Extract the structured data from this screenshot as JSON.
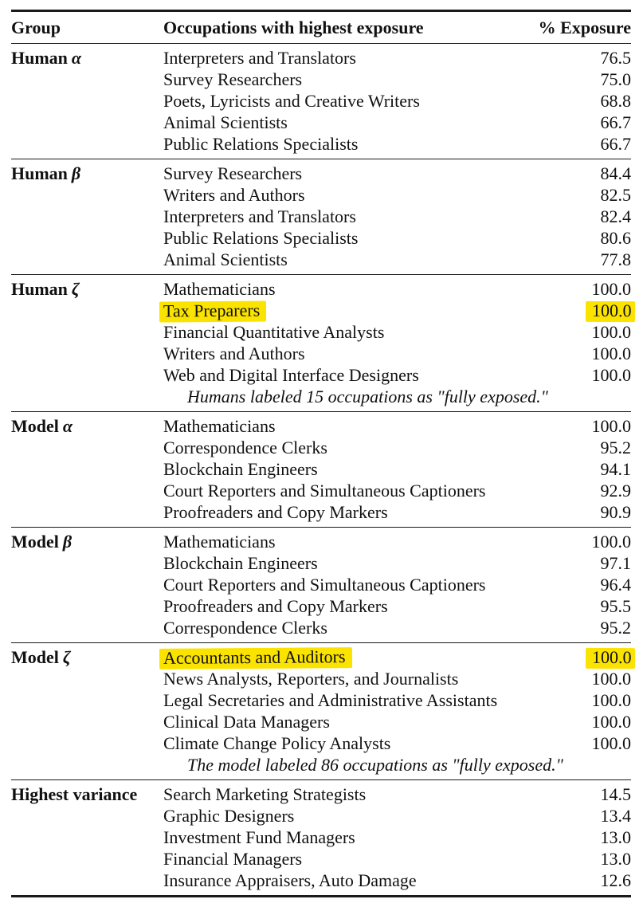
{
  "header": {
    "group": "Group",
    "occupation": "Occupations with highest exposure",
    "exposure": "% Exposure"
  },
  "highlight_color": "#fbe300",
  "groups": [
    {
      "label": "Human",
      "symbol": "α",
      "rows": [
        {
          "occupation": "Interpreters and Translators",
          "exposure": "76.5"
        },
        {
          "occupation": "Survey Researchers",
          "exposure": "75.0"
        },
        {
          "occupation": "Poets, Lyricists and Creative Writers",
          "exposure": "68.8"
        },
        {
          "occupation": "Animal Scientists",
          "exposure": "66.7"
        },
        {
          "occupation": "Public Relations Specialists",
          "exposure": "66.7"
        }
      ],
      "note": ""
    },
    {
      "label": "Human",
      "symbol": "β",
      "rows": [
        {
          "occupation": "Survey Researchers",
          "exposure": "84.4"
        },
        {
          "occupation": "Writers and Authors",
          "exposure": "82.5"
        },
        {
          "occupation": "Interpreters and Translators",
          "exposure": "82.4"
        },
        {
          "occupation": "Public Relations Specialists",
          "exposure": "80.6"
        },
        {
          "occupation": "Animal Scientists",
          "exposure": "77.8"
        }
      ],
      "note": ""
    },
    {
      "label": "Human",
      "symbol": "ζ",
      "rows": [
        {
          "occupation": "Mathematicians",
          "exposure": "100.0"
        },
        {
          "occupation": "Tax Preparers",
          "exposure": "100.0",
          "highlighted": true
        },
        {
          "occupation": "Financial Quantitative Analysts",
          "exposure": "100.0"
        },
        {
          "occupation": "Writers and Authors",
          "exposure": "100.0"
        },
        {
          "occupation": "Web and Digital Interface Designers",
          "exposure": "100.0"
        }
      ],
      "note": "Humans labeled 15 occupations as \"fully exposed.\""
    },
    {
      "label": "Model",
      "symbol": "α",
      "rows": [
        {
          "occupation": "Mathematicians",
          "exposure": "100.0"
        },
        {
          "occupation": "Correspondence Clerks",
          "exposure": "95.2"
        },
        {
          "occupation": "Blockchain Engineers",
          "exposure": "94.1"
        },
        {
          "occupation": "Court Reporters and Simultaneous Captioners",
          "exposure": "92.9"
        },
        {
          "occupation": "Proofreaders and Copy Markers",
          "exposure": "90.9"
        }
      ],
      "note": ""
    },
    {
      "label": "Model",
      "symbol": "β",
      "rows": [
        {
          "occupation": "Mathematicians",
          "exposure": "100.0"
        },
        {
          "occupation": "Blockchain Engineers",
          "exposure": "97.1"
        },
        {
          "occupation": "Court Reporters and Simultaneous Captioners",
          "exposure": "96.4"
        },
        {
          "occupation": "Proofreaders and Copy Markers",
          "exposure": "95.5"
        },
        {
          "occupation": "Correspondence Clerks",
          "exposure": "95.2"
        }
      ],
      "note": ""
    },
    {
      "label": "Model",
      "symbol": "ζ",
      "rows": [
        {
          "occupation": "Accountants and Auditors",
          "exposure": "100.0",
          "highlighted": true
        },
        {
          "occupation": "News Analysts, Reporters, and Journalists",
          "exposure": "100.0"
        },
        {
          "occupation": "Legal Secretaries and Administrative Assistants",
          "exposure": "100.0"
        },
        {
          "occupation": "Clinical Data Managers",
          "exposure": "100.0"
        },
        {
          "occupation": "Climate Change Policy Analysts",
          "exposure": "100.0"
        }
      ],
      "note": "The model labeled 86 occupations as \"fully exposed.\""
    },
    {
      "label": "Highest variance",
      "symbol": "",
      "rows": [
        {
          "occupation": "Search Marketing Strategists",
          "exposure": "14.5"
        },
        {
          "occupation": "Graphic Designers",
          "exposure": "13.4"
        },
        {
          "occupation": "Investment Fund Managers",
          "exposure": "13.0"
        },
        {
          "occupation": "Financial Managers",
          "exposure": "13.0"
        },
        {
          "occupation": "Insurance Appraisers, Auto Damage",
          "exposure": "12.6"
        }
      ],
      "note": ""
    }
  ]
}
